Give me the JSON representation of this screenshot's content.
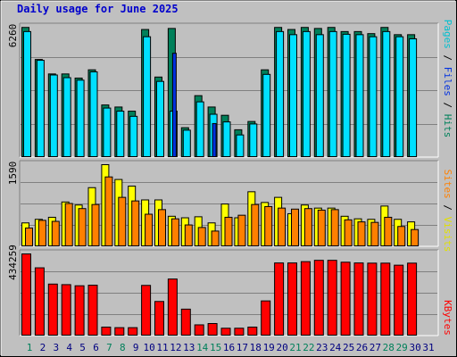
{
  "title": "Daily usage for June 2025",
  "colors": {
    "background": "#c0c0c0",
    "title": "#0000cc",
    "hits": "#00e0ff",
    "files": "#0030e0",
    "pages": "#00805a",
    "visits": "#ffff00",
    "sites": "#ff8000",
    "kbytes": "#ff0000",
    "weekend_label": "#00805a",
    "weekday_label": "#000080"
  },
  "right_labels": {
    "top": {
      "pages": "Pages",
      "sep1": " / ",
      "files": "Files",
      "sep2": " / ",
      "hits": "Hits"
    },
    "middle": {
      "sites": "Sites",
      "sep": " / ",
      "visits": "Visits"
    },
    "bottom": {
      "kbytes": "KBytes"
    }
  },
  "chart_data": [
    {
      "type": "bar",
      "panel": "hits-files-pages",
      "max_label": "6260",
      "ylim": [
        0,
        6260
      ],
      "categories": [
        "1",
        "2",
        "3",
        "4",
        "5",
        "6",
        "7",
        "8",
        "9",
        "10",
        "11",
        "12",
        "13",
        "14",
        "15",
        "16",
        "17",
        "18",
        "19",
        "20",
        "21",
        "22",
        "23",
        "24",
        "25",
        "26",
        "27",
        "28",
        "29",
        "30",
        "31"
      ],
      "weekend": [
        "1",
        "7",
        "8",
        "14",
        "15",
        "21",
        "22",
        "28",
        "29"
      ],
      "series": [
        {
          "name": "Hits",
          "values": [
            6050,
            4660,
            3950,
            3820,
            3700,
            4100,
            2350,
            2200,
            1950,
            5800,
            3640,
            2200,
            1280,
            2650,
            2050,
            1680,
            1050,
            1580,
            3980,
            6050,
            5900,
            6050,
            5900,
            6050,
            5920,
            5900,
            5800,
            6050,
            5800,
            5700,
            0
          ]
        },
        {
          "name": "Files",
          "values": [
            0,
            0,
            0,
            0,
            0,
            0,
            0,
            0,
            0,
            0,
            0,
            5000,
            0,
            0,
            1600,
            0,
            0,
            0,
            0,
            0,
            0,
            0,
            0,
            0,
            0,
            0,
            0,
            0,
            0,
            0,
            0
          ]
        },
        {
          "name": "Pages",
          "values": [
            6250,
            4700,
            4000,
            4000,
            3800,
            4200,
            2500,
            2400,
            2200,
            6150,
            3850,
            6200,
            1400,
            2950,
            2400,
            2000,
            1300,
            1700,
            4200,
            6250,
            6150,
            6250,
            6200,
            6250,
            6050,
            6050,
            5950,
            6250,
            5900,
            5900,
            0
          ]
        }
      ]
    },
    {
      "type": "bar",
      "panel": "visits-sites",
      "max_label": "1590",
      "ylim": [
        0,
        1590
      ],
      "categories": [
        "1",
        "2",
        "3",
        "4",
        "5",
        "6",
        "7",
        "8",
        "9",
        "10",
        "11",
        "12",
        "13",
        "14",
        "15",
        "16",
        "17",
        "18",
        "19",
        "20",
        "21",
        "22",
        "23",
        "24",
        "25",
        "26",
        "27",
        "28",
        "29",
        "30",
        "31"
      ],
      "series": [
        {
          "name": "Visits",
          "values": [
            450,
            520,
            560,
            860,
            800,
            1140,
            1590,
            1300,
            1170,
            900,
            900,
            580,
            550,
            570,
            450,
            820,
            550,
            1060,
            850,
            950,
            630,
            800,
            740,
            740,
            580,
            530,
            520,
            780,
            520,
            470,
            0
          ]
        },
        {
          "name": "Sites",
          "values": [
            350,
            500,
            480,
            830,
            730,
            810,
            1350,
            950,
            880,
            620,
            710,
            530,
            410,
            360,
            290,
            560,
            600,
            810,
            770,
            740,
            720,
            730,
            700,
            710,
            510,
            470,
            460,
            560,
            380,
            320,
            0
          ]
        }
      ]
    },
    {
      "type": "bar",
      "panel": "kbytes",
      "max_label": "434259",
      "ylim": [
        0,
        434259
      ],
      "categories": [
        "1",
        "2",
        "3",
        "4",
        "5",
        "6",
        "7",
        "8",
        "9",
        "10",
        "11",
        "12",
        "13",
        "14",
        "15",
        "16",
        "17",
        "18",
        "19",
        "20",
        "21",
        "22",
        "23",
        "24",
        "25",
        "26",
        "27",
        "28",
        "29",
        "30",
        "31"
      ],
      "series": [
        {
          "name": "KBytes",
          "values": [
            434259,
            360000,
            273000,
            270000,
            264000,
            267000,
            43000,
            40000,
            40000,
            266000,
            180000,
            300000,
            139000,
            55000,
            62000,
            37000,
            37000,
            43000,
            183000,
            386000,
            386000,
            393000,
            400000,
            400000,
            390000,
            386000,
            385000,
            385000,
            374000,
            385000,
            0
          ]
        }
      ]
    }
  ]
}
